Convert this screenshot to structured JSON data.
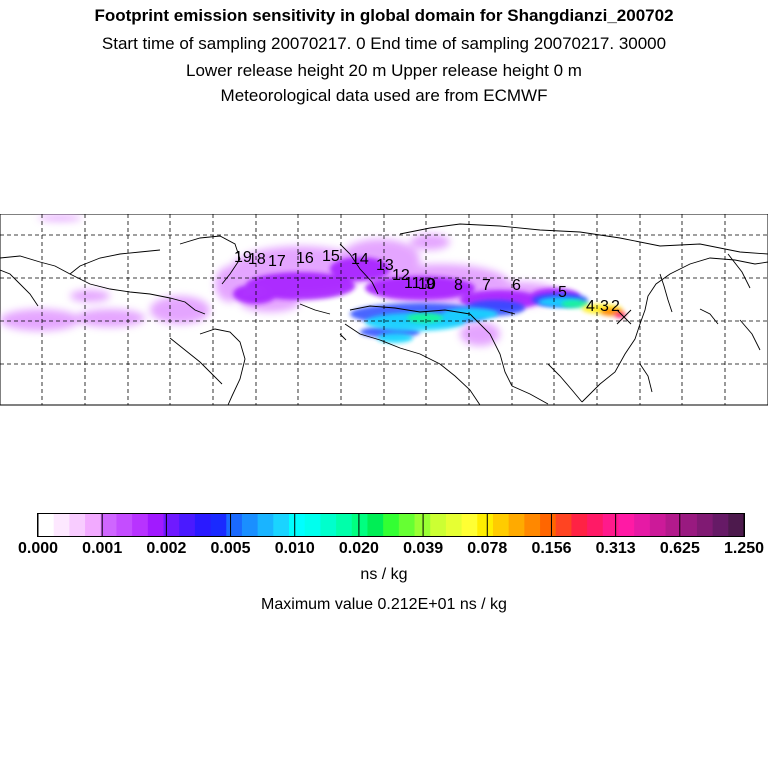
{
  "header": {
    "title": "Footprint emission sensitivity in global domain for Shangdianzi_200702",
    "line2": "Start time of sampling 20070217.     0     End time of sampling 20070217. 30000",
    "line3": "Lower release height   20 m          Upper release height    0 m",
    "line4": "Meteorological data used are from ECMWF"
  },
  "map": {
    "trajectory_day_labels": [
      "19",
      "18",
      "17",
      "16",
      "15",
      "14",
      "13",
      "12",
      "11",
      "10",
      "9",
      "8",
      "7",
      "6",
      "5",
      "4",
      "3",
      "2"
    ],
    "station_marker": "x-icon"
  },
  "colorbar": {
    "colors": [
      "#ffffff",
      "#fde8ff",
      "#f8ccff",
      "#f2aaff",
      "#cf66ff",
      "#c44dff",
      "#b833ff",
      "#a11aff",
      "#6f1aff",
      "#4a1aff",
      "#2a1aff",
      "#1a2aff",
      "#1a6aff",
      "#1a8fff",
      "#1ab4ff",
      "#1ad4ff",
      "#00ffff",
      "#00ffee",
      "#00ffcc",
      "#00ffaa",
      "#00ff80",
      "#00ee55",
      "#33ff33",
      "#66ff33",
      "#99ff33",
      "#ccff33",
      "#e6ff33",
      "#ffff33",
      "#ffee00",
      "#ffcc00",
      "#ffaa00",
      "#ff8800",
      "#ff6600",
      "#ff4422",
      "#ff2244",
      "#ff1a66",
      "#ff1a8c",
      "#ff1aa5",
      "#e61aa5",
      "#cc1a99",
      "#b31a8c",
      "#991a80",
      "#801a73",
      "#661a66",
      "#4d1a4d"
    ],
    "tick_labels": [
      "0.000",
      "0.001",
      "0.002",
      "0.005",
      "0.010",
      "0.020",
      "0.039",
      "0.078",
      "0.156",
      "0.313",
      "0.625",
      "1.250"
    ]
  },
  "units": "ns / kg",
  "max_value": "Maximum value  0.212E+01 ns / kg"
}
